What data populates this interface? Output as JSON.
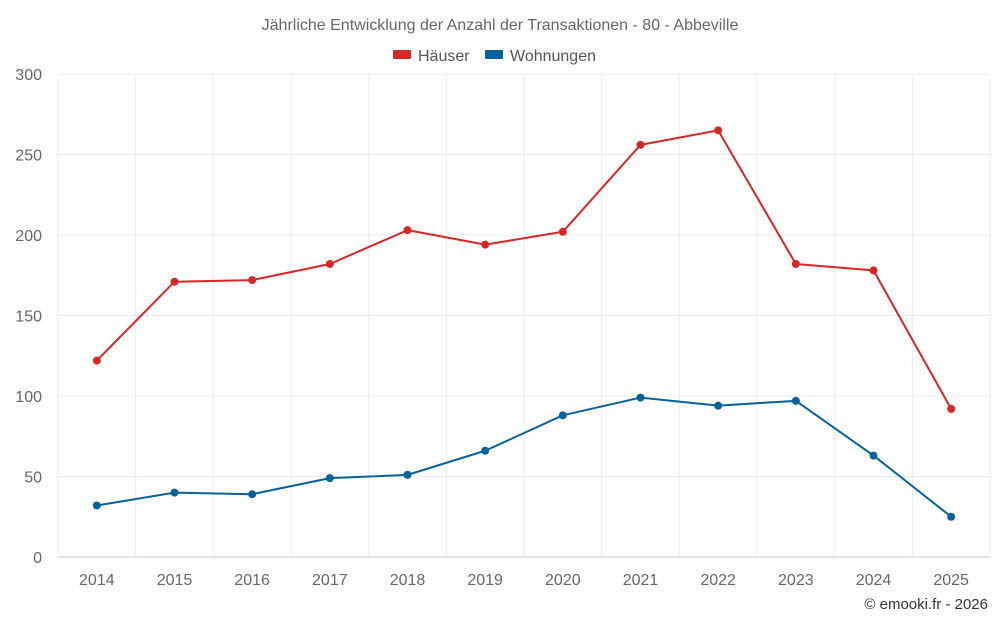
{
  "chart_data": {
    "type": "line",
    "title": "Jährliche Entwicklung der Anzahl der Transaktionen - 80 - Abbeville",
    "categories": [
      "2014",
      "2015",
      "2016",
      "2017",
      "2018",
      "2019",
      "2020",
      "2021",
      "2022",
      "2023",
      "2024",
      "2025"
    ],
    "series": [
      {
        "name": "Häuser",
        "color": "#d62728",
        "values": [
          122,
          171,
          172,
          182,
          203,
          194,
          202,
          256,
          265,
          182,
          178,
          92
        ]
      },
      {
        "name": "Wohnungen",
        "color": "#08629a",
        "values": [
          32,
          40,
          39,
          49,
          51,
          66,
          88,
          99,
          94,
          97,
          63,
          25
        ]
      }
    ],
    "ylim": [
      0,
      300
    ],
    "yticks": [
      "0",
      "50",
      "100",
      "150",
      "200",
      "250",
      "300"
    ],
    "xlabel": "",
    "ylabel": "",
    "grid": true,
    "legend": "top-center"
  },
  "credit": "© emooki.fr - 2026"
}
